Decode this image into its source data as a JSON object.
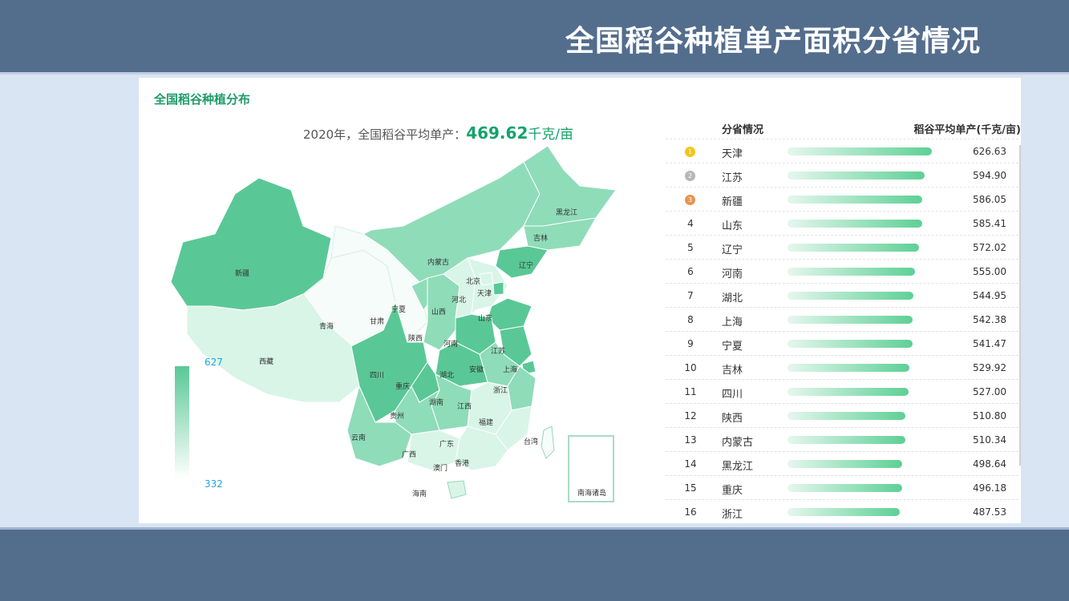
{
  "header": {
    "title": "全国稻谷种植单产面积分省情况"
  },
  "panel": {
    "title": "全国稻谷种植分布",
    "summary_prefix": "2020年，全国稻谷平均单产：",
    "summary_value": "469.62",
    "summary_unit": "千克/亩"
  },
  "map": {
    "legend_max": "627",
    "legend_min": "332",
    "inset_label": "南海诸岛",
    "regions": [
      "新疆",
      "西藏",
      "青海",
      "甘肃",
      "宁夏",
      "内蒙古",
      "黑龙江",
      "吉林",
      "辽宁",
      "北京",
      "天津",
      "河北",
      "山西",
      "山东",
      "陕西",
      "河南",
      "江苏",
      "上海",
      "四川",
      "重庆",
      "湖北",
      "安徽",
      "浙江",
      "贵州",
      "湖南",
      "江西",
      "福建",
      "云南",
      "广西",
      "广东",
      "台湾",
      "香港",
      "澳门",
      "海南"
    ],
    "colors": {
      "high": "#59c896",
      "mid": "#8fdcb9",
      "low": "#d9f5e8",
      "none": "#f5fcf9"
    }
  },
  "ranking": {
    "col_province": "分省情况",
    "col_value": "稻谷平均单产(千克/亩)",
    "max_value": 626.63,
    "rows": [
      {
        "rank": "1",
        "medal": "gold",
        "province": "天津",
        "value": "626.63"
      },
      {
        "rank": "2",
        "medal": "silver",
        "province": "江苏",
        "value": "594.90"
      },
      {
        "rank": "3",
        "medal": "bronze",
        "province": "新疆",
        "value": "586.05"
      },
      {
        "rank": "4",
        "province": "山东",
        "value": "585.41"
      },
      {
        "rank": "5",
        "province": "辽宁",
        "value": "572.02"
      },
      {
        "rank": "6",
        "province": "河南",
        "value": "555.00"
      },
      {
        "rank": "7",
        "province": "湖北",
        "value": "544.95"
      },
      {
        "rank": "8",
        "province": "上海",
        "value": "542.38"
      },
      {
        "rank": "9",
        "province": "宁夏",
        "value": "541.47"
      },
      {
        "rank": "10",
        "province": "吉林",
        "value": "529.92"
      },
      {
        "rank": "11",
        "province": "四川",
        "value": "527.00"
      },
      {
        "rank": "12",
        "province": "陕西",
        "value": "510.80"
      },
      {
        "rank": "13",
        "province": "内蒙古",
        "value": "510.34"
      },
      {
        "rank": "14",
        "province": "黑龙江",
        "value": "498.64"
      },
      {
        "rank": "15",
        "province": "重庆",
        "value": "496.18"
      },
      {
        "rank": "16",
        "province": "浙江",
        "value": "487.53"
      }
    ]
  }
}
